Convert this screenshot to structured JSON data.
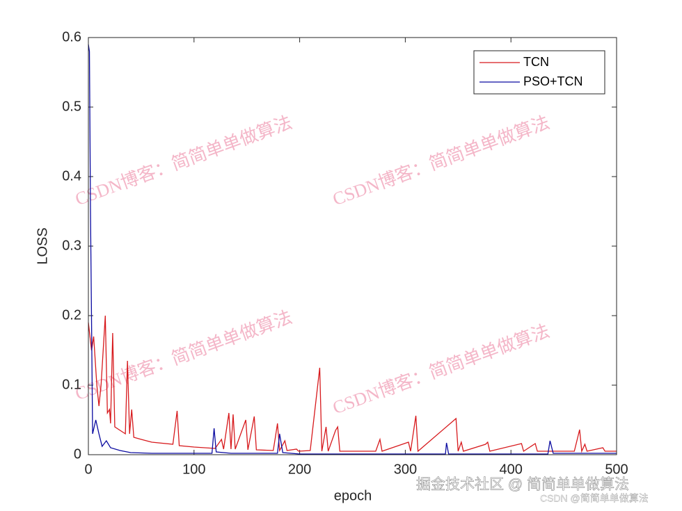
{
  "chart_data": {
    "type": "line",
    "xlabel": "epoch",
    "ylabel": "LOSS",
    "xlim": [
      0,
      500
    ],
    "xticks": [
      0,
      100,
      200,
      300,
      400,
      500
    ],
    "ylim": [
      0,
      0.6
    ],
    "yticks": [
      0,
      0.1,
      0.2,
      0.3,
      0.4,
      0.5,
      0.6
    ],
    "legend": "top-right",
    "series": [
      {
        "name": "TCN",
        "color": "#d7191c",
        "x": [
          0,
          3,
          5,
          8,
          10,
          12,
          16,
          18,
          20,
          21,
          23,
          25,
          30,
          35,
          37,
          39,
          41,
          43,
          50,
          60,
          80,
          84,
          86,
          100,
          120,
          126,
          128,
          133,
          135,
          137,
          139,
          149,
          151,
          157,
          159,
          175,
          177,
          179,
          181,
          186,
          188,
          197,
          199,
          210,
          219,
          221,
          225,
          227,
          234,
          236,
          238,
          272,
          276,
          278,
          303,
          305,
          310,
          312,
          348,
          350,
          353,
          355,
          376,
          378,
          380,
          410,
          412,
          423,
          425,
          460,
          465,
          467,
          470,
          472,
          487,
          489,
          500
        ],
        "values": [
          0.19,
          0.15,
          0.17,
          0.1,
          0.07,
          0.1,
          0.2,
          0.06,
          0.065,
          0.045,
          0.175,
          0.04,
          0.035,
          0.03,
          0.135,
          0.03,
          0.065,
          0.025,
          0.022,
          0.018,
          0.015,
          0.063,
          0.013,
          0.011,
          0.009,
          0.022,
          0.008,
          0.06,
          0.008,
          0.058,
          0.008,
          0.05,
          0.007,
          0.055,
          0.007,
          0.006,
          0.025,
          0.045,
          0.006,
          0.02,
          0.006,
          0.008,
          0.005,
          0.006,
          0.125,
          0.005,
          0.04,
          0.005,
          0.035,
          0.04,
          0.005,
          0.005,
          0.022,
          0.005,
          0.018,
          0.005,
          0.056,
          0.005,
          0.052,
          0.005,
          0.018,
          0.005,
          0.015,
          0.018,
          0.005,
          0.016,
          0.005,
          0.016,
          0.005,
          0.005,
          0.036,
          0.005,
          0.015,
          0.005,
          0.01,
          0.005,
          0.005
        ]
      },
      {
        "name": "PSO+TCN",
        "color": "#0a0aa0",
        "x": [
          0,
          1,
          2,
          4,
          7,
          10,
          13,
          17,
          21,
          30,
          40,
          60,
          117,
          119,
          121,
          135,
          179,
          181,
          184,
          200,
          338,
          339,
          341,
          435,
          437,
          440,
          500
        ],
        "values": [
          0.59,
          0.58,
          0.35,
          0.03,
          0.05,
          0.03,
          0.012,
          0.02,
          0.01,
          0.006,
          0.003,
          0.002,
          0.002,
          0.038,
          0.004,
          0.002,
          0.002,
          0.03,
          0.003,
          0.001,
          0.001,
          0.017,
          0.001,
          0.001,
          0.02,
          0.002,
          0.002
        ]
      }
    ],
    "watermark": "CSDN博客：简简单单做算法",
    "footer": [
      "掘金技术社区 @ 简简单单做算法",
      "CSDN @简简单单做算法"
    ]
  }
}
